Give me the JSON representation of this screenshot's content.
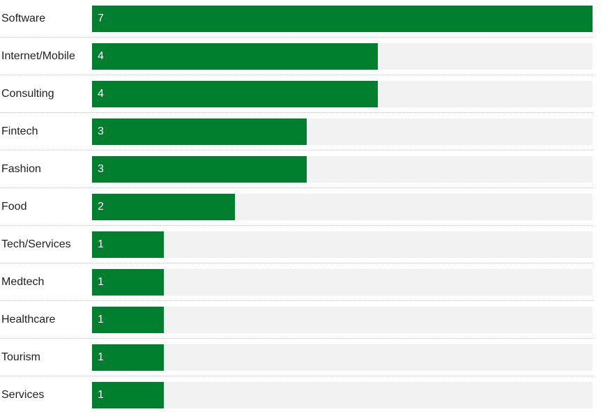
{
  "colors": {
    "bar": "#007f2f",
    "track": "#f2f2f2",
    "label": "#1f1f1f",
    "value": "#ffffff"
  },
  "chart_data": {
    "type": "bar",
    "orientation": "horizontal",
    "categories": [
      "Software",
      "Internet/Mobile",
      "Consulting",
      "Fintech",
      "Fashion",
      "Food",
      "Tech/Services",
      "Medtech",
      "Healthcare",
      "Tourism",
      "Services"
    ],
    "values": [
      7,
      4,
      4,
      3,
      3,
      2,
      1,
      1,
      1,
      1,
      1
    ],
    "title": "",
    "xlabel": "",
    "ylabel": "",
    "xlim": [
      0,
      7
    ],
    "grid": false,
    "legend": "none"
  }
}
